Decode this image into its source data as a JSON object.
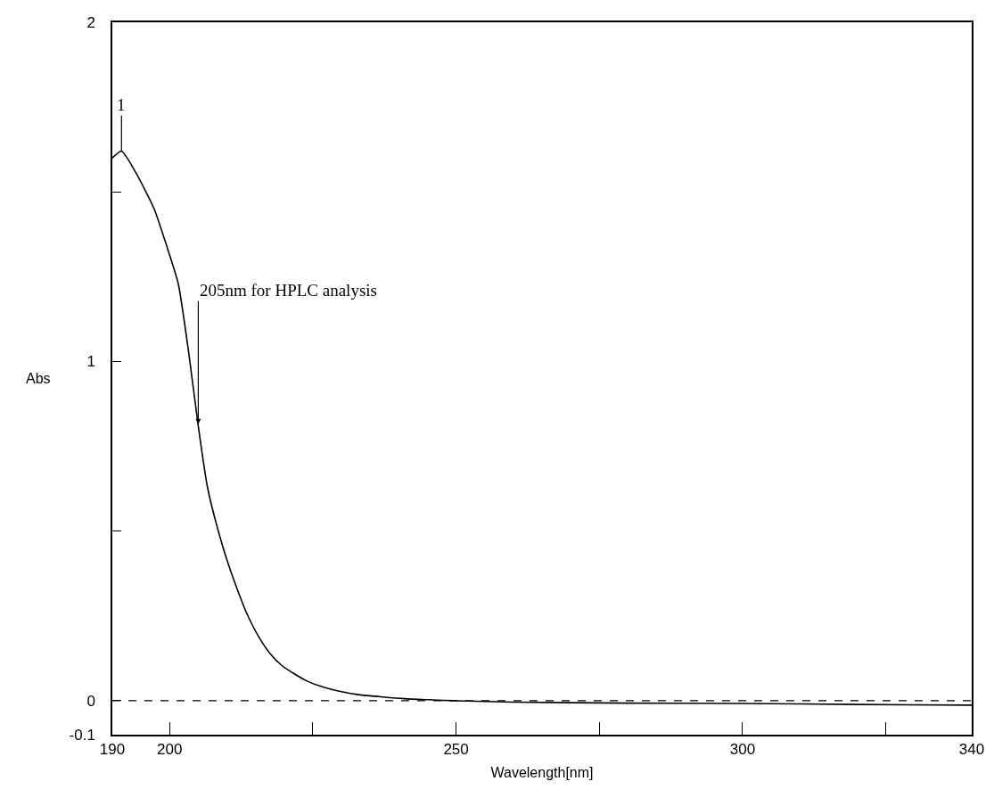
{
  "chart_data": {
    "type": "line",
    "xlabel": "Wavelength[nm]",
    "ylabel": "Abs",
    "x": [
      190,
      191.6,
      194,
      197.3,
      199.5,
      201.5,
      203.3,
      205,
      206.6,
      208.5,
      210.3,
      212,
      213.4,
      215.5,
      217.5,
      219.5,
      221.7,
      224,
      226.9,
      230,
      233,
      237.3,
      241,
      245.1,
      250,
      260,
      280,
      300,
      320,
      340
    ],
    "series": [
      {
        "color": "#000000",
        "values": [
          1.6,
          1.62,
          1.56,
          1.45,
          1.34,
          1.23,
          1.03,
          0.81,
          0.63,
          0.5,
          0.4,
          0.32,
          0.26,
          0.19,
          0.14,
          0.105,
          0.08,
          0.058,
          0.04,
          0.027,
          0.018,
          0.011,
          0.006,
          0.003,
          0,
          -0.004,
          -0.007,
          -0.008,
          -0.011,
          -0.013
        ]
      }
    ],
    "xlim": [
      190,
      340
    ],
    "xticks": [
      190,
      200,
      {
        "value": 225,
        "label": null
      },
      250,
      {
        "value": 275,
        "label": null
      },
      300,
      {
        "value": 325,
        "label": null
      },
      340
    ],
    "ylim": [
      -0.1,
      2
    ],
    "yticks": [
      -0.1,
      0,
      {
        "value": 0.5,
        "label": null
      },
      1,
      {
        "value": 1.5,
        "label": null
      },
      2
    ],
    "ref_lines": [
      {
        "axis": "y",
        "value": 0,
        "line_style": "dashed",
        "color": "#000000"
      }
    ],
    "annotations": [
      {
        "text": "205nm for HPLC analysis",
        "x": 205,
        "y": 0.81
      },
      {
        "text": "1",
        "x": 191.6,
        "y": 1.62
      }
    ],
    "marker": "none",
    "line_style": "solid"
  }
}
